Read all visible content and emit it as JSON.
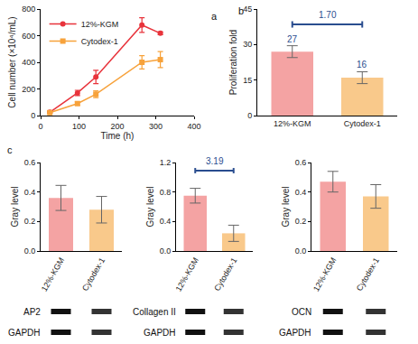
{
  "chart_data": [
    {
      "type": "line",
      "title": "a",
      "x_label": "Time (h)",
      "y_label": "Cell number (×10⁴/mL)",
      "x": [
        24,
        96,
        144,
        264,
        312
      ],
      "xlim": [
        0,
        400
      ],
      "xticks": [
        0,
        100,
        200,
        300,
        400
      ],
      "ylim": [
        0,
        800
      ],
      "yticks": [
        0,
        200,
        400,
        600,
        800
      ],
      "legend": "upper left",
      "series": [
        {
          "name": "12%-KGM",
          "color": "#e8333b",
          "marker": "circle",
          "values": [
            25,
            170,
            290,
            680,
            618
          ],
          "error": [
            8,
            20,
            50,
            55,
            10
          ]
        },
        {
          "name": "Cytodex-1",
          "color": "#f7a23b",
          "marker": "square",
          "values": [
            22,
            90,
            160,
            400,
            420
          ],
          "error": [
            5,
            12,
            25,
            50,
            60
          ]
        }
      ]
    },
    {
      "type": "bar",
      "title": "b",
      "y_label": "Proliferation fold",
      "categories": [
        "12%-KGM",
        "Cytodex-1"
      ],
      "values": [
        27,
        16
      ],
      "error": [
        2.5,
        2.5
      ],
      "colors": [
        "#f4a3a3",
        "#f9c98b"
      ],
      "ylim": [
        0,
        45
      ],
      "yticks": [
        0,
        15,
        30,
        45
      ],
      "data_labels": true,
      "annotations": [
        {
          "text": "1.70",
          "bracket": [
            0,
            1
          ]
        }
      ]
    },
    {
      "type": "bar",
      "title": "c",
      "y_label": "Gray level",
      "categories": [
        "12%-KGM",
        "Cytodex-1"
      ],
      "values": [
        0.36,
        0.28
      ],
      "error": [
        0.085,
        0.09
      ],
      "colors": [
        "#f4a3a3",
        "#f9c98b"
      ],
      "ylim": [
        0,
        0.6
      ],
      "yticks": [
        {
          "value": 0,
          "label": "0.0"
        },
        {
          "value": 0.2,
          "label": "0.2"
        },
        {
          "value": 0.4,
          "label": "0.4"
        },
        {
          "value": 0.6,
          "label": "0.6"
        }
      ],
      "blot_labels": [
        "AP2",
        "GAPDH"
      ]
    },
    {
      "type": "bar",
      "y_label": "Gray level",
      "categories": [
        "12%-KGM",
        "Cytodex-1"
      ],
      "values": [
        0.75,
        0.24
      ],
      "error": [
        0.1,
        0.11
      ],
      "colors": [
        "#f4a3a3",
        "#f9c98b"
      ],
      "ylim": [
        0,
        1.2
      ],
      "yticks": [
        {
          "value": 0,
          "label": "0.0"
        },
        {
          "value": 0.4,
          "label": "0.4"
        },
        {
          "value": 0.8,
          "label": "0.8"
        },
        {
          "value": 1.2,
          "label": "1.2"
        }
      ],
      "annotations": [
        {
          "text": "3.19",
          "bracket": [
            0,
            1
          ]
        }
      ],
      "blot_labels": [
        "Collagen II",
        "GAPDH"
      ]
    },
    {
      "type": "bar",
      "y_label": "Gray level",
      "categories": [
        "12%-KGM",
        "Cytodex-1"
      ],
      "values": [
        0.47,
        0.37
      ],
      "error": [
        0.07,
        0.08
      ],
      "colors": [
        "#f4a3a3",
        "#f9c98b"
      ],
      "ylim": [
        0,
        0.6
      ],
      "yticks": [
        {
          "value": 0,
          "label": "0.0"
        },
        {
          "value": 0.2,
          "label": "0.2"
        },
        {
          "value": 0.4,
          "label": "0.4"
        },
        {
          "value": 0.6,
          "label": "0.6"
        }
      ],
      "blot_labels": [
        "OCN",
        "GAPDH"
      ]
    }
  ]
}
